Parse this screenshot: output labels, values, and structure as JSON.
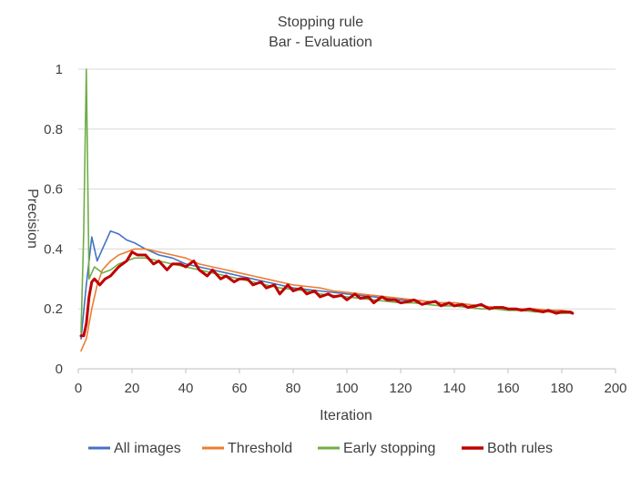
{
  "chart_data": {
    "type": "line",
    "title": "Stopping rule",
    "subtitle": "Bar - Evaluation",
    "xlabel": "Iteration",
    "ylabel": "Precision",
    "xlim": [
      0,
      200
    ],
    "ylim": [
      0,
      1
    ],
    "x_ticks": [
      "0",
      "20",
      "40",
      "60",
      "80",
      "100",
      "120",
      "140",
      "160",
      "180",
      "200"
    ],
    "y_ticks": [
      "0",
      "0.2",
      "0.4",
      "0.6",
      "0.8",
      "1"
    ],
    "grid": true,
    "legend_position": "bottom",
    "series": [
      {
        "name": "All images",
        "color": "#4472C4",
        "x": [
          1,
          3,
          5,
          7,
          9,
          12,
          15,
          18,
          21,
          25,
          30,
          35,
          40,
          45,
          50,
          55,
          60,
          65,
          70,
          75,
          80,
          85,
          90,
          95,
          100,
          105,
          110,
          115,
          120,
          125,
          130,
          135,
          140,
          145,
          150,
          155,
          160,
          165,
          170,
          175,
          180,
          184
        ],
        "y": [
          0.1,
          0.28,
          0.44,
          0.36,
          0.4,
          0.46,
          0.45,
          0.43,
          0.42,
          0.4,
          0.38,
          0.37,
          0.35,
          0.34,
          0.33,
          0.32,
          0.31,
          0.3,
          0.29,
          0.28,
          0.27,
          0.265,
          0.26,
          0.255,
          0.25,
          0.245,
          0.24,
          0.235,
          0.23,
          0.23,
          0.225,
          0.22,
          0.22,
          0.215,
          0.21,
          0.205,
          0.2,
          0.2,
          0.195,
          0.195,
          0.19,
          0.19
        ]
      },
      {
        "name": "Threshold",
        "color": "#ED7D31",
        "x": [
          1,
          3,
          5,
          7,
          9,
          12,
          15,
          18,
          21,
          25,
          30,
          35,
          40,
          45,
          50,
          55,
          60,
          65,
          70,
          75,
          80,
          85,
          90,
          95,
          100,
          105,
          110,
          115,
          120,
          125,
          130,
          135,
          140,
          145,
          150,
          155,
          160,
          165,
          170,
          175,
          180,
          184
        ],
        "y": [
          0.06,
          0.1,
          0.2,
          0.28,
          0.33,
          0.36,
          0.38,
          0.39,
          0.4,
          0.4,
          0.39,
          0.38,
          0.37,
          0.35,
          0.34,
          0.33,
          0.32,
          0.31,
          0.3,
          0.29,
          0.28,
          0.275,
          0.27,
          0.26,
          0.255,
          0.25,
          0.245,
          0.24,
          0.235,
          0.23,
          0.225,
          0.22,
          0.22,
          0.215,
          0.21,
          0.205,
          0.2,
          0.2,
          0.2,
          0.195,
          0.195,
          0.19
        ]
      },
      {
        "name": "Early stopping",
        "color": "#70AD47",
        "x": [
          1,
          2,
          3,
          4,
          6,
          9,
          12,
          15,
          18,
          21,
          25,
          30,
          35,
          40,
          45,
          50,
          55,
          60,
          65,
          70,
          75,
          80,
          85,
          90,
          95,
          100,
          105,
          110,
          115,
          120,
          125,
          130,
          135,
          140,
          145,
          150,
          155,
          160,
          165,
          170,
          175,
          180,
          184
        ],
        "y": [
          0.12,
          0.45,
          1.0,
          0.3,
          0.34,
          0.32,
          0.33,
          0.35,
          0.36,
          0.37,
          0.37,
          0.36,
          0.35,
          0.34,
          0.33,
          0.32,
          0.31,
          0.3,
          0.29,
          0.28,
          0.27,
          0.265,
          0.26,
          0.25,
          0.245,
          0.24,
          0.235,
          0.23,
          0.225,
          0.22,
          0.22,
          0.215,
          0.21,
          0.21,
          0.205,
          0.2,
          0.2,
          0.195,
          0.195,
          0.19,
          0.19,
          0.185,
          0.185
        ]
      },
      {
        "name": "Both rules",
        "color": "#C00000",
        "x": [
          1,
          2,
          3,
          4,
          5,
          6,
          8,
          10,
          12,
          15,
          18,
          20,
          22,
          25,
          28,
          30,
          33,
          35,
          38,
          40,
          43,
          45,
          48,
          50,
          53,
          55,
          58,
          60,
          63,
          65,
          68,
          70,
          73,
          75,
          78,
          80,
          83,
          85,
          88,
          90,
          93,
          95,
          98,
          100,
          103,
          105,
          108,
          110,
          113,
          115,
          118,
          120,
          123,
          125,
          128,
          130,
          133,
          135,
          138,
          140,
          143,
          145,
          148,
          150,
          153,
          155,
          158,
          160,
          163,
          165,
          168,
          170,
          173,
          175,
          178,
          180,
          183,
          184
        ],
        "y": [
          0.11,
          0.11,
          0.15,
          0.24,
          0.29,
          0.3,
          0.28,
          0.3,
          0.31,
          0.34,
          0.36,
          0.39,
          0.38,
          0.38,
          0.35,
          0.36,
          0.33,
          0.35,
          0.35,
          0.34,
          0.36,
          0.33,
          0.31,
          0.33,
          0.3,
          0.31,
          0.29,
          0.3,
          0.3,
          0.28,
          0.29,
          0.27,
          0.28,
          0.25,
          0.28,
          0.26,
          0.27,
          0.25,
          0.26,
          0.24,
          0.25,
          0.24,
          0.245,
          0.23,
          0.25,
          0.235,
          0.24,
          0.22,
          0.24,
          0.23,
          0.23,
          0.22,
          0.225,
          0.23,
          0.215,
          0.22,
          0.225,
          0.21,
          0.22,
          0.21,
          0.215,
          0.205,
          0.21,
          0.215,
          0.2,
          0.205,
          0.205,
          0.2,
          0.2,
          0.195,
          0.2,
          0.195,
          0.19,
          0.195,
          0.185,
          0.19,
          0.19,
          0.185
        ]
      }
    ]
  }
}
